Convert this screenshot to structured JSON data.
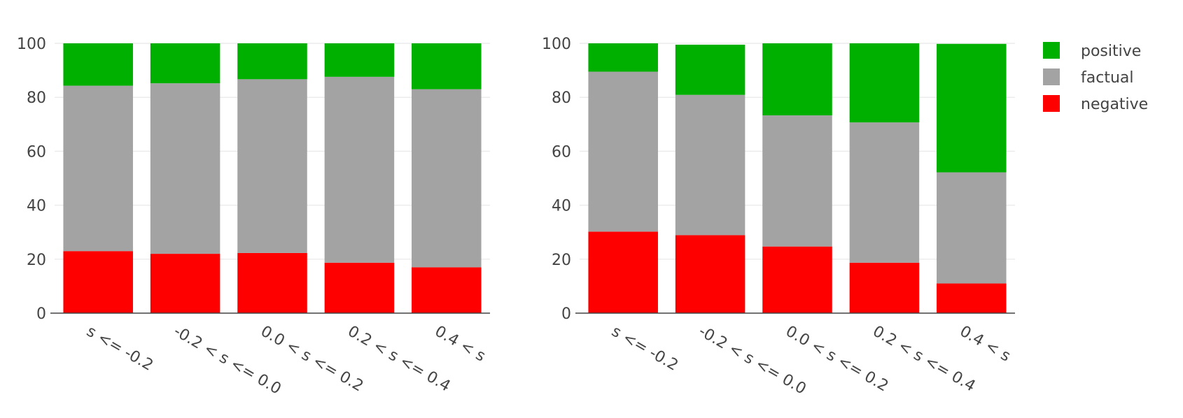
{
  "chart_data": [
    {
      "type": "bar",
      "stacked": true,
      "categories": [
        "s <= -0.2",
        "-0.2 < s <= 0.0",
        "0.0 < s <= 0.2",
        "0.2 < s <= 0.4",
        "0.4 < s"
      ],
      "series": [
        {
          "name": "negative",
          "color": "#ff0000",
          "values": [
            23,
            22,
            22.3,
            18.7,
            17
          ]
        },
        {
          "name": "factual",
          "color": "#a3a3a3",
          "values": [
            61.3,
            63.2,
            64.4,
            68.9,
            66
          ]
        },
        {
          "name": "positive",
          "color": "#00b000",
          "values": [
            15.7,
            14.8,
            13.3,
            12.4,
            17
          ]
        }
      ],
      "ylim": [
        0,
        100
      ],
      "yticks": [
        0,
        20,
        40,
        60,
        80,
        100
      ],
      "grid": true
    },
    {
      "type": "bar",
      "stacked": true,
      "categories": [
        "s <= -0.2",
        "-0.2 < s <= 0.0",
        "0.0 < s <= 0.2",
        "0.2 < s <= 0.4",
        "0.4 < s"
      ],
      "series": [
        {
          "name": "negative",
          "color": "#ff0000",
          "values": [
            30.2,
            28.9,
            24.7,
            18.7,
            11
          ]
        },
        {
          "name": "factual",
          "color": "#a3a3a3",
          "values": [
            59.3,
            52,
            48.6,
            52,
            41.2
          ]
        },
        {
          "name": "positive",
          "color": "#00b000",
          "values": [
            10.5,
            18.6,
            26.7,
            29.3,
            47.6
          ]
        }
      ],
      "ylim": [
        0,
        100
      ],
      "yticks": [
        0,
        20,
        40,
        60,
        80,
        100
      ],
      "grid": true
    }
  ],
  "legend": {
    "position": "top-right",
    "items": [
      {
        "name": "positive",
        "color": "#00b000"
      },
      {
        "name": "factual",
        "color": "#a3a3a3"
      },
      {
        "name": "negative",
        "color": "#ff0000"
      }
    ]
  }
}
